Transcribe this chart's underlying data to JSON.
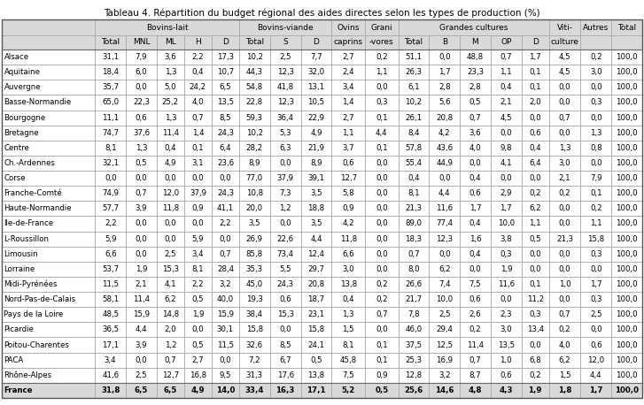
{
  "title": "Tableau 4. Répartition du budget régional des aides directes selon les types de production (%)",
  "row_labels": [
    "Alsace",
    "Aquitaine",
    "Auvergne",
    "Basse-Normandie",
    "Bourgogne",
    "Bretagne",
    "Centre",
    "Ch.-Ardennes",
    "Corse",
    "Franche-Comté",
    "Haute-Normandie",
    "Ile-de-France",
    "L-Roussillon",
    "Limousin",
    "Lorraine",
    "Midi-Pyrénées",
    "Nord-Pas-de-Calais",
    "Pays de la Loire",
    "Picardie",
    "Poitou-Charentes",
    "PACA",
    "Rhône-Alpes",
    "France"
  ],
  "data": [
    [
      31.1,
      7.9,
      3.6,
      2.2,
      17.3,
      10.2,
      2.5,
      7.7,
      2.7,
      0.2,
      51.1,
      0.0,
      48.8,
      0.7,
      1.7,
      4.5,
      0.2,
      100.0
    ],
    [
      18.4,
      6.0,
      1.3,
      0.4,
      10.7,
      44.3,
      12.3,
      32.0,
      2.4,
      1.1,
      26.3,
      1.7,
      23.3,
      1.1,
      0.1,
      4.5,
      3.0,
      100.0
    ],
    [
      35.7,
      0.0,
      5.0,
      24.2,
      6.5,
      54.8,
      41.8,
      13.1,
      3.4,
      0.0,
      6.1,
      2.8,
      2.8,
      0.4,
      0.1,
      0.0,
      0.0,
      100.0
    ],
    [
      65.0,
      22.3,
      25.2,
      4.0,
      13.5,
      22.8,
      12.3,
      10.5,
      1.4,
      0.3,
      10.2,
      5.6,
      0.5,
      2.1,
      2.0,
      0.0,
      0.3,
      100.0
    ],
    [
      11.1,
      0.6,
      1.3,
      0.7,
      8.5,
      59.3,
      36.4,
      22.9,
      2.7,
      0.1,
      26.1,
      20.8,
      0.7,
      4.5,
      0.0,
      0.7,
      0.0,
      100.0
    ],
    [
      74.7,
      37.6,
      11.4,
      1.4,
      24.3,
      10.2,
      5.3,
      4.9,
      1.1,
      4.4,
      8.4,
      4.2,
      3.6,
      0.0,
      0.6,
      0.0,
      1.3,
      100.0
    ],
    [
      8.1,
      1.3,
      0.4,
      0.1,
      6.4,
      28.2,
      6.3,
      21.9,
      3.7,
      0.1,
      57.8,
      43.6,
      4.0,
      9.8,
      0.4,
      1.3,
      0.8,
      100.0
    ],
    [
      32.1,
      0.5,
      4.9,
      3.1,
      23.6,
      8.9,
      0.0,
      8.9,
      0.6,
      0.0,
      55.4,
      44.9,
      0.0,
      4.1,
      6.4,
      3.0,
      0.0,
      100.0
    ],
    [
      0.0,
      0.0,
      0.0,
      0.0,
      0.0,
      77.0,
      37.9,
      39.1,
      12.7,
      0.0,
      0.4,
      0.0,
      0.4,
      0.0,
      0.0,
      2.1,
      7.9,
      100.0
    ],
    [
      74.9,
      0.7,
      12.0,
      37.9,
      24.3,
      10.8,
      7.3,
      3.5,
      5.8,
      0.0,
      8.1,
      4.4,
      0.6,
      2.9,
      0.2,
      0.2,
      0.1,
      100.0
    ],
    [
      57.7,
      3.9,
      11.8,
      0.9,
      41.1,
      20.0,
      1.2,
      18.8,
      0.9,
      0.0,
      21.3,
      11.6,
      1.7,
      1.7,
      6.2,
      0.0,
      0.2,
      100.0
    ],
    [
      2.2,
      0.0,
      0.0,
      0.0,
      2.2,
      3.5,
      0.0,
      3.5,
      4.2,
      0.0,
      89.0,
      77.4,
      0.4,
      10.0,
      1.1,
      0.0,
      1.1,
      100.0
    ],
    [
      5.9,
      0.0,
      0.0,
      5.9,
      0.0,
      26.9,
      22.6,
      4.4,
      11.8,
      0.0,
      18.3,
      12.3,
      1.6,
      3.8,
      0.5,
      21.3,
      15.8,
      100.0
    ],
    [
      6.6,
      0.0,
      2.5,
      3.4,
      0.7,
      85.8,
      73.4,
      12.4,
      6.6,
      0.0,
      0.7,
      0.0,
      0.4,
      0.3,
      0.0,
      0.0,
      0.3,
      100.0
    ],
    [
      53.7,
      1.9,
      15.3,
      8.1,
      28.4,
      35.3,
      5.5,
      29.7,
      3.0,
      0.0,
      8.0,
      6.2,
      0.0,
      1.9,
      0.0,
      0.0,
      0.0,
      100.0
    ],
    [
      11.5,
      2.1,
      4.1,
      2.2,
      3.2,
      45.0,
      24.3,
      20.8,
      13.8,
      0.2,
      26.6,
      7.4,
      7.5,
      11.6,
      0.1,
      1.0,
      1.7,
      100.0
    ],
    [
      58.1,
      11.4,
      6.2,
      0.5,
      40.0,
      19.3,
      0.6,
      18.7,
      0.4,
      0.2,
      21.7,
      10.0,
      0.6,
      0.0,
      11.2,
      0.0,
      0.3,
      100.0
    ],
    [
      48.5,
      15.9,
      14.8,
      1.9,
      15.9,
      38.4,
      15.3,
      23.1,
      1.3,
      0.7,
      7.8,
      2.5,
      2.6,
      2.3,
      0.3,
      0.7,
      2.5,
      100.0
    ],
    [
      36.5,
      4.4,
      2.0,
      0.0,
      30.1,
      15.8,
      0.0,
      15.8,
      1.5,
      0.0,
      46.0,
      29.4,
      0.2,
      3.0,
      13.4,
      0.2,
      0.0,
      100.0
    ],
    [
      17.1,
      3.9,
      1.2,
      0.5,
      11.5,
      32.6,
      8.5,
      24.1,
      8.1,
      0.1,
      37.5,
      12.5,
      11.4,
      13.5,
      0.0,
      4.0,
      0.6,
      100.0
    ],
    [
      3.4,
      0.0,
      0.7,
      2.7,
      0.0,
      7.2,
      6.7,
      0.5,
      45.8,
      0.1,
      25.3,
      16.9,
      0.7,
      1.0,
      6.8,
      6.2,
      12.0,
      100.0
    ],
    [
      41.6,
      2.5,
      12.7,
      16.8,
      9.5,
      31.3,
      17.6,
      13.8,
      7.5,
      0.9,
      12.8,
      3.2,
      8.7,
      0.6,
      0.2,
      1.5,
      4.4,
      100.0
    ],
    [
      31.8,
      6.5,
      6.5,
      4.9,
      14.0,
      33.4,
      16.3,
      17.1,
      5.2,
      0.5,
      25.6,
      14.6,
      4.8,
      4.3,
      1.9,
      1.8,
      1.7,
      100.0
    ]
  ],
  "bg_header": "#d9d9d9",
  "bg_white": "#ffffff",
  "text_color": "#000000",
  "font_size_title": 7.5,
  "font_size_table": 6.2,
  "font_size_header": 6.5
}
